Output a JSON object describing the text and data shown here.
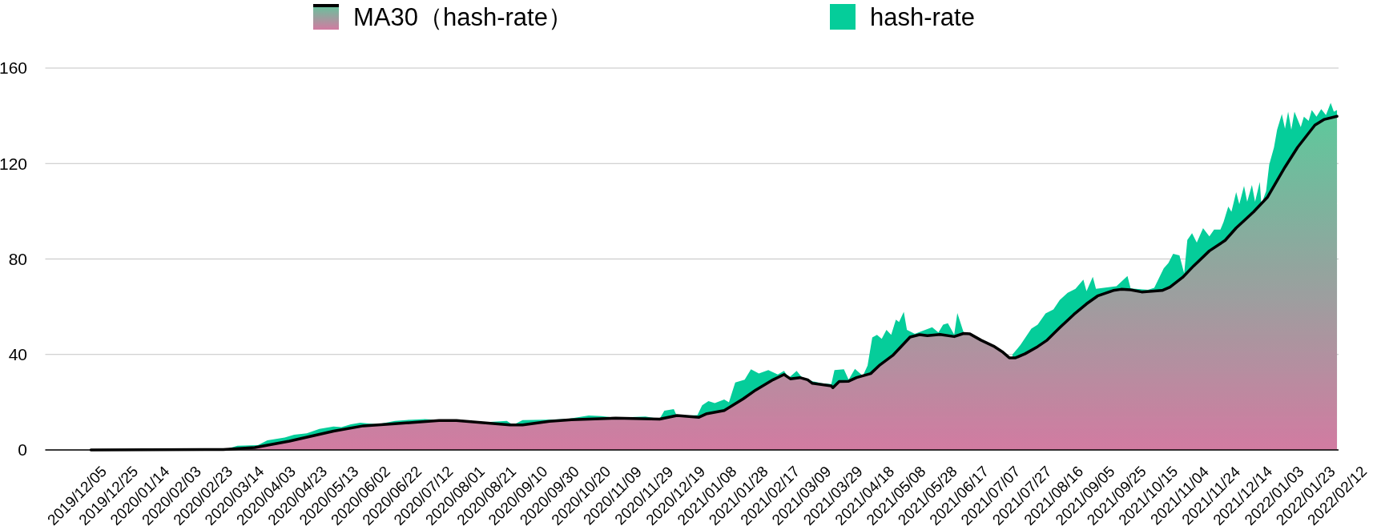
{
  "chart_data": {
    "type": "area",
    "xlim": [
      "2019-11-15",
      "2022-02-13"
    ],
    "ylim": [
      0,
      160
    ],
    "yticks": [
      0,
      40,
      80,
      120,
      160
    ],
    "grid": "y",
    "legend": "top",
    "xticks": [
      {
        "value": "2019-12-05",
        "label": "2019/12/05"
      },
      {
        "value": "2019-12-25",
        "label": "2019/12/25"
      },
      {
        "value": "2020-01-14",
        "label": "2020/01/14"
      },
      {
        "value": "2020-02-03",
        "label": "2020/02/03"
      },
      {
        "value": "2020-02-23",
        "label": "2020/02/23"
      },
      {
        "value": "2020-03-14",
        "label": "2020/03/14"
      },
      {
        "value": "2020-04-03",
        "label": "2020/04/03"
      },
      {
        "value": "2020-04-23",
        "label": "2020/04/23"
      },
      {
        "value": "2020-05-13",
        "label": "2020/05/13"
      },
      {
        "value": "2020-06-02",
        "label": "2020/06/02"
      },
      {
        "value": "2020-06-22",
        "label": "2020/06/22"
      },
      {
        "value": "2020-07-12",
        "label": "2020/07/12"
      },
      {
        "value": "2020-08-01",
        "label": "2020/08/01"
      },
      {
        "value": "2020-08-21",
        "label": "2020/08/21"
      },
      {
        "value": "2020-09-10",
        "label": "2020/09/10"
      },
      {
        "value": "2020-09-30",
        "label": "2020/09/30"
      },
      {
        "value": "2020-10-20",
        "label": "2020/10/20"
      },
      {
        "value": "2020-11-09",
        "label": "2020/11/09"
      },
      {
        "value": "2020-11-29",
        "label": "2020/11/29"
      },
      {
        "value": "2020-12-19",
        "label": "2020/12/19"
      },
      {
        "value": "2021-01-08",
        "label": "2021/01/08"
      },
      {
        "value": "2021-01-28",
        "label": "2021/01/28"
      },
      {
        "value": "2021-02-17",
        "label": "2021/02/17"
      },
      {
        "value": "2021-03-09",
        "label": "2021/03/09"
      },
      {
        "value": "2021-03-29",
        "label": "2021/03/29"
      },
      {
        "value": "2021-04-18",
        "label": "2021/04/18"
      },
      {
        "value": "2021-05-08",
        "label": "2021/05/08"
      },
      {
        "value": "2021-05-28",
        "label": "2021/05/28"
      },
      {
        "value": "2021-06-17",
        "label": "2021/06/17"
      },
      {
        "value": "2021-07-07",
        "label": "2021/07/07"
      },
      {
        "value": "2021-07-27",
        "label": "2021/07/27"
      },
      {
        "value": "2021-08-16",
        "label": "2021/08/16"
      },
      {
        "value": "2021-09-05",
        "label": "2021/09/05"
      },
      {
        "value": "2021-09-25",
        "label": "2021/09/25"
      },
      {
        "value": "2021-10-15",
        "label": "2021/10/15"
      },
      {
        "value": "2021-11-04",
        "label": "2021/11/04"
      },
      {
        "value": "2021-11-24",
        "label": "2021/11/24"
      },
      {
        "value": "2021-12-14",
        "label": "2021/12/14"
      },
      {
        "value": "2022-01-03",
        "label": "2022/01/03"
      },
      {
        "value": "2022-01-23",
        "label": "2022/01/23"
      },
      {
        "value": "2022-02-12",
        "label": "2022/02/12"
      }
    ],
    "series": [
      {
        "name": "MA30（hash-rate）",
        "color": "#000000",
        "x": [
          "2019-12-14",
          "2020-03-07",
          "2020-03-27",
          "2020-04-18",
          "2020-05-16",
          "2020-06-04",
          "2020-06-24",
          "2020-07-22",
          "2020-08-02",
          "2020-08-19",
          "2020-09-05",
          "2020-09-13",
          "2020-09-30",
          "2020-10-14",
          "2020-11-11",
          "2020-12-09",
          "2020-12-20",
          "2021-01-03",
          "2021-01-08",
          "2021-01-19",
          "2021-01-31",
          "2021-02-08",
          "2021-02-19",
          "2021-02-26",
          "2021-03-02",
          "2021-03-08",
          "2021-03-13",
          "2021-03-16",
          "2021-03-28",
          "2021-03-29",
          "2021-04-02",
          "2021-04-08",
          "2021-04-13",
          "2021-04-22",
          "2021-04-28",
          "2021-05-06",
          "2021-05-17",
          "2021-05-23",
          "2021-05-28",
          "2021-06-05",
          "2021-06-14",
          "2021-06-20",
          "2021-06-24",
          "2021-07-01",
          "2021-07-09",
          "2021-07-15",
          "2021-07-19",
          "2021-07-23",
          "2021-07-29",
          "2021-08-06",
          "2021-08-12",
          "2021-08-20",
          "2021-08-29",
          "2021-09-06",
          "2021-09-13",
          "2021-09-23",
          "2021-09-28",
          "2021-10-04",
          "2021-10-11",
          "2021-10-24",
          "2021-10-29",
          "2021-11-06",
          "2021-11-13",
          "2021-11-23",
          "2021-12-03",
          "2021-12-10",
          "2021-12-21",
          "2021-12-30",
          "2022-01-10",
          "2022-01-18",
          "2022-01-29",
          "2022-02-04",
          "2022-02-12"
        ],
        "values": [
          0,
          0.2,
          1,
          3.7,
          7.9,
          10.1,
          11,
          12.3,
          12.3,
          11.4,
          10.5,
          10.5,
          12,
          12.7,
          13.3,
          12.9,
          14.4,
          13.7,
          15.2,
          16.5,
          21.4,
          25.1,
          29.4,
          31.6,
          29.8,
          30.3,
          29.4,
          27.9,
          26.8,
          26.1,
          28.7,
          28.8,
          30.3,
          32,
          35.7,
          39.6,
          47.3,
          48.3,
          47.9,
          48.4,
          47.5,
          48.8,
          48.6,
          46,
          43.5,
          40.9,
          38.6,
          38.6,
          40.3,
          43.3,
          46,
          51.2,
          56.8,
          61.2,
          64.5,
          66.8,
          67.3,
          67.1,
          66.2,
          66.8,
          68.2,
          72.3,
          77.1,
          83.4,
          87.8,
          93,
          99.7,
          106,
          118.5,
          126.8,
          136.1,
          138.5,
          139.8
        ],
        "colors": [
          "#d27ba1",
          "#d27ba1",
          "#d17ca1",
          "#cf7da1",
          "#cb7fa1",
          "#ca81a1",
          "#c981a1",
          "#c882a1",
          "#c882a1",
          "#c981a1",
          "#c981a1",
          "#c981a1",
          "#c882a1",
          "#c782a1",
          "#c782a1",
          "#c782a1",
          "#c683a0",
          "#c783a1",
          "#c583a0",
          "#c484a0",
          "#c087a0",
          "#bd89a0",
          "#ba8ba0",
          "#b88ca0",
          "#b98ba0",
          "#b98ca0",
          "#ba8ba0",
          "#bb8aa0",
          "#bc8aa0",
          "#bc89a0",
          "#ba8ba0",
          "#ba8ba0",
          "#b98ca0",
          "#b78da0",
          "#b48fa0",
          "#b191a0",
          "#ab959f",
          "#aa969f",
          "#aa959f",
          "#aa969f",
          "#ab959f",
          "#aa969f",
          "#aa969f",
          "#ac949f",
          "#ae939f",
          "#b092a0",
          "#b290a0",
          "#b290a0",
          "#b191a0",
          "#ae939f",
          "#ac949f",
          "#a8979f",
          "#a39a9f",
          "#9f9d9f",
          "#9c9f9f",
          "#9ba09f",
          "#9aa09f",
          "#9aa09f",
          "#9b9f9f",
          "#9ba09f",
          "#99a19f",
          "#96a39e",
          "#92a59e",
          "#8da99e",
          "#89ab9e",
          "#85ae9e",
          "#7fb29d",
          "#7ab59d",
          "#70bc9d",
          "#69c19c",
          "#61c69c",
          "#5fc79c",
          "#5ec89c"
        ]
      },
      {
        "name": "hash-rate",
        "color": "#05cd9a",
        "x": [
          "2019-11-16",
          "2020-03-07",
          "2020-03-16",
          "2020-03-29",
          "2020-04-04",
          "2020-04-15",
          "2020-04-21",
          "2020-04-29",
          "2020-05-07",
          "2020-05-16",
          "2020-05-21",
          "2020-05-27",
          "2020-06-02",
          "2020-06-13",
          "2020-06-24",
          "2020-07-05",
          "2020-07-13",
          "2020-07-22",
          "2020-08-19",
          "2020-09-03",
          "2020-09-07",
          "2020-09-13",
          "2020-09-27",
          "2020-10-11",
          "2020-10-25",
          "2020-11-02",
          "2020-11-11",
          "2020-11-30",
          "2020-12-09",
          "2020-12-12",
          "2020-12-18",
          "2020-12-20",
          "2021-01-02",
          "2021-01-05",
          "2021-01-09",
          "2021-01-13",
          "2021-01-19",
          "2021-01-22",
          "2021-01-26",
          "2021-02-01",
          "2021-02-05",
          "2021-02-10",
          "2021-02-16",
          "2021-02-22",
          "2021-02-26",
          "2021-03-01",
          "2021-03-06",
          "2021-03-09",
          "2021-03-16",
          "2021-03-22",
          "2021-03-28",
          "2021-03-30",
          "2021-04-05",
          "2021-04-08",
          "2021-04-12",
          "2021-04-17",
          "2021-04-20",
          "2021-04-23",
          "2021-04-26",
          "2021-04-29",
          "2021-05-02",
          "2021-05-05",
          "2021-05-08",
          "2021-05-10",
          "2021-05-13",
          "2021-05-15",
          "2021-05-20",
          "2021-05-31",
          "2021-06-04",
          "2021-06-07",
          "2021-06-10",
          "2021-06-14",
          "2021-06-16",
          "2021-06-20",
          "2021-06-25",
          "2021-07-05",
          "2021-07-15",
          "2021-07-21",
          "2021-07-26",
          "2021-08-02",
          "2021-08-06",
          "2021-08-11",
          "2021-08-16",
          "2021-08-20",
          "2021-08-25",
          "2021-08-30",
          "2021-09-04",
          "2021-09-06",
          "2021-09-10",
          "2021-09-12",
          "2021-09-25",
          "2021-10-02",
          "2021-10-04",
          "2021-10-15",
          "2021-10-19",
          "2021-10-25",
          "2021-10-28",
          "2021-10-31",
          "2021-11-04",
          "2021-11-07",
          "2021-11-09",
          "2021-11-12",
          "2021-11-15",
          "2021-11-19",
          "2021-11-23",
          "2021-11-26",
          "2021-11-30",
          "2021-12-02",
          "2021-12-05",
          "2021-12-07",
          "2021-12-10",
          "2021-12-12",
          "2021-12-15",
          "2021-12-17",
          "2021-12-20",
          "2021-12-22",
          "2021-12-25",
          "2021-12-26",
          "2021-12-29",
          "2021-12-31",
          "2022-01-03",
          "2022-01-05",
          "2022-01-08",
          "2022-01-10",
          "2022-01-12",
          "2022-01-14",
          "2022-01-16",
          "2022-01-20",
          "2022-01-22",
          "2022-01-25",
          "2022-01-27",
          "2022-01-30",
          "2022-02-02",
          "2022-02-05",
          "2022-02-08",
          "2022-02-10",
          "2022-02-12"
        ],
        "values": [
          0,
          0,
          1.8,
          2,
          4,
          5.2,
          6.4,
          7,
          8.8,
          9.8,
          9.6,
          10.7,
          11.4,
          10.7,
          12.2,
          12.7,
          12.9,
          12.5,
          11.6,
          12.2,
          10.5,
          12.5,
          12.7,
          12.9,
          14.4,
          14.2,
          13.5,
          14,
          13,
          16.4,
          17.1,
          14.2,
          14.6,
          18.7,
          20.5,
          19.6,
          21.1,
          20,
          28.3,
          29.4,
          33.8,
          32,
          33.5,
          31.6,
          33.1,
          30.2,
          33.1,
          30.7,
          28.8,
          27.9,
          27.6,
          33.5,
          33.8,
          29.4,
          34,
          31,
          35.3,
          47.1,
          48.2,
          46.5,
          50.3,
          48.2,
          54.6,
          53.6,
          57.9,
          50.3,
          48.6,
          51.4,
          49.2,
          52.5,
          53.1,
          48.3,
          57.4,
          49.2,
          48.8,
          null,
          null,
          40,
          43.9,
          50.8,
          52.5,
          57.2,
          58.9,
          62.8,
          65.8,
          67.5,
          71.4,
          66.5,
          72.5,
          67.5,
          68.6,
          72.9,
          67.7,
          67.1,
          67.9,
          76.1,
          78.3,
          82.2,
          81.5,
          74,
          88,
          90.8,
          86.9,
          92.9,
          89.5,
          92.3,
          92.3,
          95.5,
          102,
          99.8,
          108,
          103,
          110.6,
          104,
          111,
          104,
          112.3,
          103,
          108.4,
          119.6,
          126.7,
          134.2,
          140.7,
          134.6,
          141.7,
          134.2,
          141.7,
          135.3,
          139.6,
          137.9,
          142.4,
          139.6,
          142.8,
          140.3,
          145.4,
          141.7,
          142.4
        ]
      }
    ]
  }
}
